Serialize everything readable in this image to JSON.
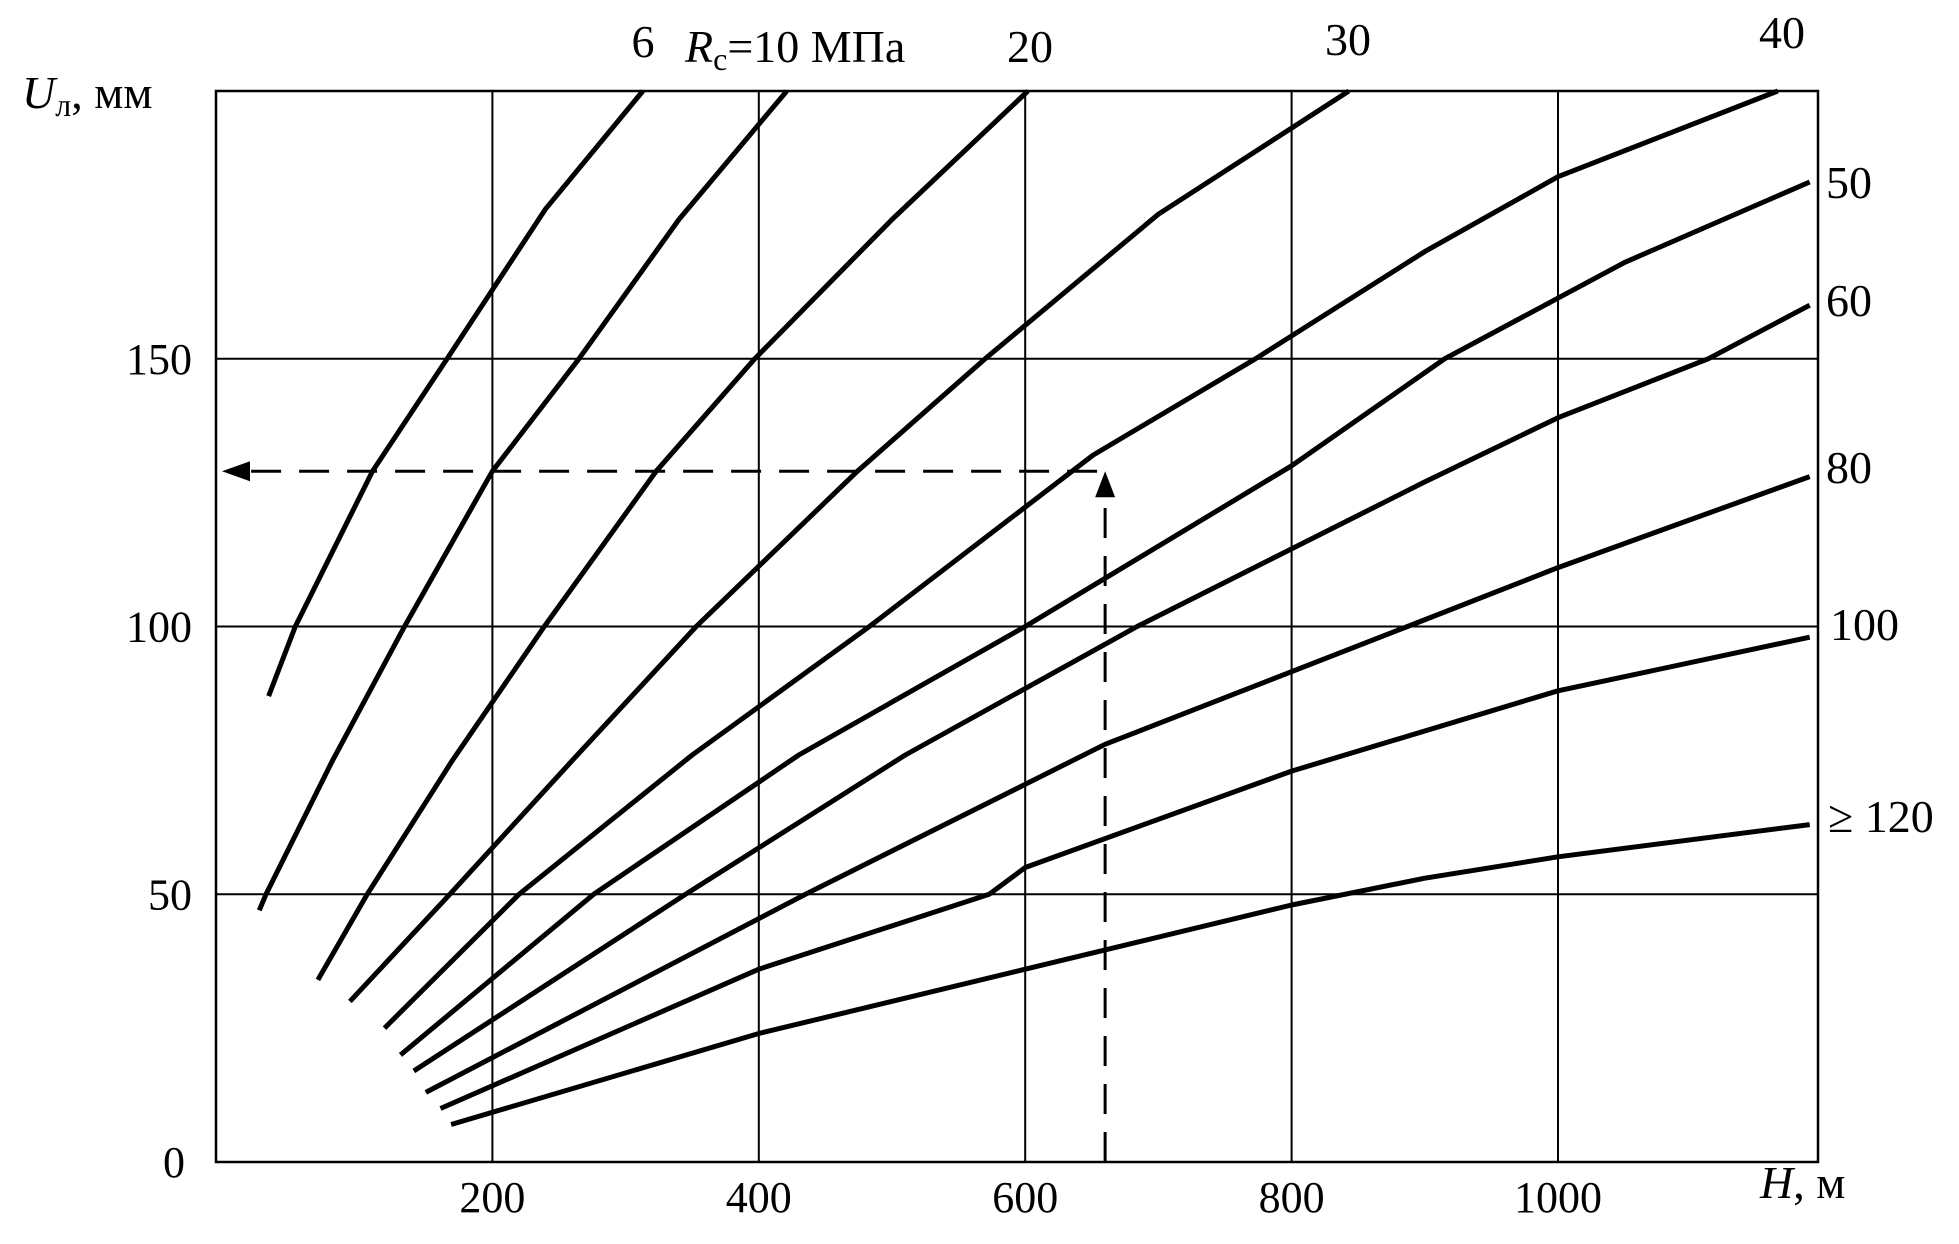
{
  "chart_data": {
    "type": "line",
    "title": "",
    "xlabel": {
      "main": "H",
      "unit": ", м"
    },
    "ylabel": {
      "main": "U",
      "sub": "л",
      "unit": ", мм"
    },
    "xlim": [
      0,
      1200
    ],
    "ylim": [
      0,
      200
    ],
    "xticks": [
      200,
      400,
      600,
      800,
      1000
    ],
    "yticks": [
      0,
      50,
      100,
      150
    ],
    "grid": true,
    "series_param": {
      "main": "R",
      "sub": "с",
      "rest": "=10 МПа"
    },
    "series": [
      {
        "name": "6",
        "label": "6",
        "points": [
          [
            32,
            87
          ],
          [
            52,
            100
          ],
          [
            110,
            129
          ],
          [
            166,
            150
          ],
          [
            240,
            178
          ],
          [
            313,
            200
          ]
        ]
      },
      {
        "name": "10",
        "label": "10",
        "points": [
          [
            25,
            47
          ],
          [
            30,
            50
          ],
          [
            80,
            75
          ],
          [
            134,
            100
          ],
          [
            200,
            129
          ],
          [
            265,
            150
          ],
          [
            340,
            176
          ],
          [
            421,
            200
          ]
        ]
      },
      {
        "name": "20",
        "label": "20",
        "points": [
          [
            69,
            34
          ],
          [
            106,
            50
          ],
          [
            170,
            75
          ],
          [
            239,
            100
          ],
          [
            323,
            129
          ],
          [
            397,
            150
          ],
          [
            500,
            176
          ],
          [
            602,
            200
          ]
        ]
      },
      {
        "name": "30",
        "label": "30",
        "points": [
          [
            93,
            30
          ],
          [
            168,
            50
          ],
          [
            260,
            75
          ],
          [
            353,
            100
          ],
          [
            474,
            129
          ],
          [
            570,
            150
          ],
          [
            700,
            177
          ],
          [
            843,
            200
          ]
        ]
      },
      {
        "name": "40",
        "label": "40",
        "points": [
          [
            119,
            25
          ],
          [
            220,
            50
          ],
          [
            350,
            76
          ],
          [
            483,
            100
          ],
          [
            651,
            132
          ],
          [
            773,
            150
          ],
          [
            900,
            170
          ],
          [
            1000,
            184
          ],
          [
            1165,
            200
          ]
        ]
      },
      {
        "name": "50",
        "label": "50",
        "points": [
          [
            131,
            20
          ],
          [
            276,
            50
          ],
          [
            430,
            76
          ],
          [
            600,
            100
          ],
          [
            800,
            130
          ],
          [
            915,
            150
          ],
          [
            1050,
            168
          ],
          [
            1189,
            183
          ]
        ]
      },
      {
        "name": "60",
        "label": "60",
        "points": [
          [
            141,
            17
          ],
          [
            345,
            50
          ],
          [
            510,
            76
          ],
          [
            684,
            100
          ],
          [
            900,
            127
          ],
          [
            1000,
            139
          ],
          [
            1113,
            150
          ],
          [
            1189,
            160
          ]
        ]
      },
      {
        "name": "80",
        "label": "80",
        "points": [
          [
            150,
            13
          ],
          [
            435,
            50
          ],
          [
            660,
            78
          ],
          [
            887,
            100
          ],
          [
            1000,
            111
          ],
          [
            1100,
            120
          ],
          [
            1189,
            128
          ]
        ]
      },
      {
        "name": "100",
        "label": "100",
        "points": [
          [
            161,
            10
          ],
          [
            400,
            36
          ],
          [
            573,
            50
          ],
          [
            600,
            55
          ],
          [
            800,
            73
          ],
          [
            1000,
            88
          ],
          [
            1189,
            98
          ]
        ]
      },
      {
        "name": "120",
        "label": "≥ 120",
        "points": [
          [
            169,
            7
          ],
          [
            400,
            24
          ],
          [
            600,
            36
          ],
          [
            800,
            48
          ],
          [
            900,
            53
          ],
          [
            1000,
            57
          ],
          [
            1189,
            63
          ]
        ]
      }
    ],
    "annotation": {
      "type": "dashed-arrow",
      "from_x": 660,
      "to_curve": "40",
      "y_read": 129
    }
  }
}
